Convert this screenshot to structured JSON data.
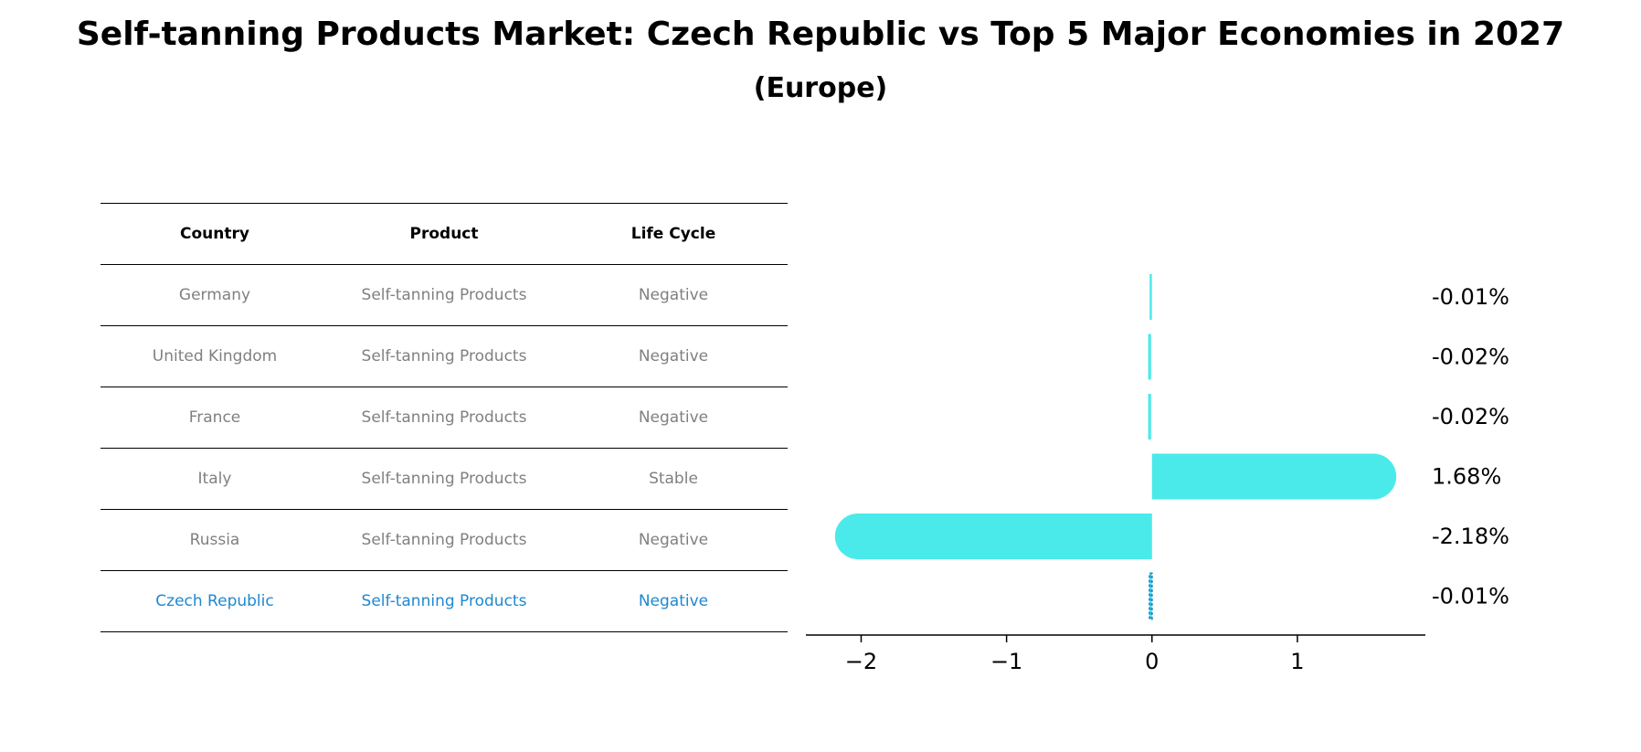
{
  "title": "Self-tanning Products Market: Czech Republic vs Top 5 Major Economies in 2027",
  "subtitle": "(Europe)",
  "table": {
    "headers": [
      "Country",
      "Product",
      "Life Cycle"
    ],
    "rows": [
      [
        "Germany",
        "Self-tanning Products",
        "Negative"
      ],
      [
        "United Kingdom",
        "Self-tanning Products",
        "Negative"
      ],
      [
        "France",
        "Self-tanning Products",
        "Negative"
      ],
      [
        "Italy",
        "Self-tanning Products",
        "Stable"
      ],
      [
        "Russia",
        "Self-tanning Products",
        "Negative"
      ],
      [
        "Czech Republic",
        "Self-tanning Products",
        "Negative"
      ]
    ]
  },
  "colors": {
    "bar": "#4aeaea",
    "highlight": "#1f88d0",
    "muted_text": "#808080"
  },
  "chart_data": {
    "type": "bar",
    "orientation": "horizontal",
    "categories": [
      "Germany",
      "United Kingdom",
      "France",
      "Italy",
      "Russia",
      "Czech Republic"
    ],
    "values": [
      -0.01,
      -0.02,
      -0.02,
      1.68,
      -2.18,
      -0.01
    ],
    "value_labels": [
      "-0.01%",
      "-0.02%",
      "-0.02%",
      "1.68%",
      "-2.18%",
      "-0.01%"
    ],
    "xlim": [
      -2.38,
      1.88
    ],
    "xticks": [
      -2,
      -1,
      0,
      1
    ],
    "xtick_labels": [
      "−2",
      "−1",
      "0",
      "1"
    ],
    "highlight_index": 5,
    "grid": false
  }
}
